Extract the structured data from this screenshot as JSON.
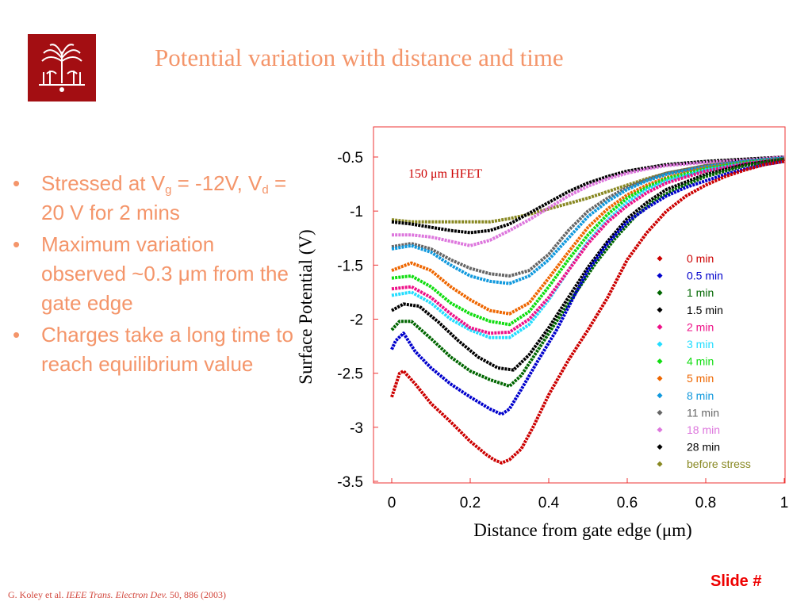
{
  "slide": {
    "title": "Potential variation with distance and time",
    "logo_icon": "university-seal-icon",
    "slide_number": "Slide #",
    "colors": {
      "accent": "#f4956a",
      "logo_bg": "#a30e12"
    }
  },
  "bullets": [
    {
      "parts": [
        "Stressed at V",
        "g",
        " = -12V, V",
        "d",
        " = 20 V for 2 mins"
      ]
    },
    {
      "text": "Maximum variation observed ~0.3 μm from the gate edge"
    },
    {
      "text": "Charges take a long time to reach equilibrium value"
    }
  ],
  "citation": {
    "authors": "G. Koley et al. ",
    "journal": "IEEE Trans. Electron Dev.",
    "details": " 50, 886 (2003)"
  },
  "chart_data": {
    "type": "scatter",
    "title": "",
    "annotation": "150 μm HFET",
    "xlabel": "Distance from gate edge (μm)",
    "ylabel": "Surface Potential (V)",
    "xlim": [
      0,
      1
    ],
    "ylim": [
      -3.5,
      -0.3
    ],
    "xticks": [
      0,
      0.2,
      0.4,
      0.6,
      0.8,
      1
    ],
    "xtick_labels": [
      "0",
      "0.2",
      "0.4",
      "0.6",
      "0.8",
      "1"
    ],
    "yticks": [
      -0.5,
      -1,
      -1.5,
      -2,
      -2.5,
      -3,
      -3.5
    ],
    "ytick_labels": [
      "-0.5",
      "-1",
      "-1.5",
      "-2",
      "-2.5",
      "-3",
      "-3.5"
    ],
    "grid": false,
    "legend_position": "right",
    "series": [
      {
        "name": "0 min",
        "color": "#cc0000",
        "x": [
          0,
          0.02,
          0.03,
          0.06,
          0.1,
          0.15,
          0.2,
          0.24,
          0.26,
          0.28,
          0.3,
          0.33,
          0.36,
          0.4,
          0.45,
          0.5,
          0.55,
          0.6,
          0.65,
          0.7,
          0.75,
          0.8,
          0.85,
          0.9,
          0.95,
          1
        ],
        "y": [
          -2.72,
          -2.5,
          -2.48,
          -2.6,
          -2.78,
          -2.95,
          -3.13,
          -3.25,
          -3.3,
          -3.33,
          -3.3,
          -3.2,
          -3.0,
          -2.7,
          -2.38,
          -2.1,
          -1.8,
          -1.45,
          -1.2,
          -1.0,
          -0.86,
          -0.76,
          -0.68,
          -0.62,
          -0.57,
          -0.54
        ]
      },
      {
        "name": "0.5 min",
        "color": "#0000cc",
        "x": [
          0,
          0.01,
          0.03,
          0.06,
          0.1,
          0.15,
          0.2,
          0.25,
          0.28,
          0.3,
          0.33,
          0.37,
          0.42,
          0.47,
          0.5,
          0.55,
          0.6,
          0.65,
          0.7,
          0.75,
          0.8,
          0.85,
          0.9,
          0.95,
          1
        ],
        "y": [
          -2.28,
          -2.2,
          -2.13,
          -2.3,
          -2.45,
          -2.6,
          -2.72,
          -2.83,
          -2.88,
          -2.83,
          -2.65,
          -2.4,
          -2.1,
          -1.75,
          -1.55,
          -1.3,
          -1.1,
          -0.97,
          -0.86,
          -0.78,
          -0.72,
          -0.66,
          -0.61,
          -0.57,
          -0.54
        ]
      },
      {
        "name": "1 min",
        "color": "#006600",
        "x": [
          0,
          0.02,
          0.05,
          0.1,
          0.15,
          0.2,
          0.25,
          0.3,
          0.33,
          0.37,
          0.42,
          0.47,
          0.52,
          0.57,
          0.62,
          0.67,
          0.72,
          0.8,
          0.9,
          1
        ],
        "y": [
          -2.1,
          -2.02,
          -2.02,
          -2.18,
          -2.35,
          -2.48,
          -2.56,
          -2.62,
          -2.52,
          -2.3,
          -2.02,
          -1.75,
          -1.48,
          -1.25,
          -1.05,
          -0.9,
          -0.8,
          -0.68,
          -0.58,
          -0.52
        ]
      },
      {
        "name": "1.5 min",
        "color": "#000000",
        "x": [
          0,
          0.03,
          0.07,
          0.12,
          0.17,
          0.22,
          0.27,
          0.31,
          0.35,
          0.4,
          0.45,
          0.5,
          0.55,
          0.6,
          0.65,
          0.7,
          0.8,
          0.9,
          1
        ],
        "y": [
          -1.92,
          -1.86,
          -1.88,
          -2.03,
          -2.2,
          -2.35,
          -2.45,
          -2.47,
          -2.33,
          -2.08,
          -1.8,
          -1.52,
          -1.28,
          -1.07,
          -0.92,
          -0.8,
          -0.66,
          -0.57,
          -0.52
        ]
      },
      {
        "name": "2 min",
        "color": "#ee1188",
        "x": [
          0,
          0.05,
          0.1,
          0.15,
          0.2,
          0.25,
          0.3,
          0.35,
          0.4,
          0.45,
          0.5,
          0.55,
          0.6,
          0.65,
          0.7,
          0.8,
          0.9,
          1
        ],
        "y": [
          -1.72,
          -1.7,
          -1.8,
          -1.95,
          -2.08,
          -2.13,
          -2.12,
          -2.0,
          -1.8,
          -1.55,
          -1.3,
          -1.1,
          -0.95,
          -0.83,
          -0.74,
          -0.63,
          -0.56,
          -0.52
        ]
      },
      {
        "name": "3 min",
        "color": "#22ddff",
        "x": [
          0,
          0.05,
          0.1,
          0.15,
          0.2,
          0.25,
          0.3,
          0.35,
          0.4,
          0.45,
          0.5,
          0.55,
          0.6,
          0.65,
          0.7,
          0.8,
          0.9,
          1
        ],
        "y": [
          -1.78,
          -1.75,
          -1.85,
          -2.0,
          -2.1,
          -2.17,
          -2.17,
          -2.05,
          -1.82,
          -1.55,
          -1.28,
          -1.08,
          -0.92,
          -0.8,
          -0.72,
          -0.62,
          -0.56,
          -0.52
        ]
      },
      {
        "name": "4 min",
        "color": "#11dd11",
        "x": [
          0,
          0.05,
          0.1,
          0.15,
          0.2,
          0.25,
          0.3,
          0.35,
          0.4,
          0.45,
          0.5,
          0.55,
          0.6,
          0.65,
          0.7,
          0.8,
          0.9,
          1
        ],
        "y": [
          -1.62,
          -1.6,
          -1.7,
          -1.85,
          -1.95,
          -2.02,
          -2.05,
          -1.93,
          -1.7,
          -1.45,
          -1.22,
          -1.03,
          -0.88,
          -0.78,
          -0.7,
          -0.61,
          -0.55,
          -0.52
        ]
      },
      {
        "name": "5 min",
        "color": "#ee6600",
        "x": [
          0,
          0.05,
          0.1,
          0.15,
          0.2,
          0.25,
          0.3,
          0.35,
          0.4,
          0.45,
          0.5,
          0.55,
          0.6,
          0.65,
          0.7,
          0.8,
          0.9,
          1
        ],
        "y": [
          -1.55,
          -1.48,
          -1.55,
          -1.7,
          -1.82,
          -1.92,
          -1.95,
          -1.85,
          -1.62,
          -1.38,
          -1.15,
          -0.98,
          -0.85,
          -0.76,
          -0.69,
          -0.6,
          -0.55,
          -0.52
        ]
      },
      {
        "name": "8 min",
        "color": "#1199dd",
        "x": [
          0,
          0.05,
          0.1,
          0.15,
          0.2,
          0.25,
          0.3,
          0.35,
          0.4,
          0.45,
          0.5,
          0.55,
          0.6,
          0.65,
          0.7,
          0.8,
          0.9,
          1
        ],
        "y": [
          -1.35,
          -1.32,
          -1.38,
          -1.5,
          -1.6,
          -1.65,
          -1.67,
          -1.6,
          -1.45,
          -1.25,
          -1.05,
          -0.91,
          -0.8,
          -0.72,
          -0.66,
          -0.59,
          -0.54,
          -0.51
        ]
      },
      {
        "name": "11 min",
        "color": "#666666",
        "x": [
          0,
          0.05,
          0.1,
          0.15,
          0.2,
          0.25,
          0.3,
          0.35,
          0.4,
          0.45,
          0.5,
          0.55,
          0.6,
          0.65,
          0.7,
          0.8,
          0.9,
          1
        ],
        "y": [
          -1.33,
          -1.3,
          -1.35,
          -1.45,
          -1.53,
          -1.58,
          -1.6,
          -1.55,
          -1.4,
          -1.18,
          -1.0,
          -0.88,
          -0.78,
          -0.71,
          -0.65,
          -0.58,
          -0.54,
          -0.51
        ]
      },
      {
        "name": "18 min",
        "color": "#dd77dd",
        "x": [
          0,
          0.05,
          0.1,
          0.15,
          0.2,
          0.25,
          0.3,
          0.35,
          0.4,
          0.45,
          0.5,
          0.55,
          0.6,
          0.65,
          0.7,
          0.8,
          0.9,
          1
        ],
        "y": [
          -1.22,
          -1.22,
          -1.24,
          -1.28,
          -1.32,
          -1.27,
          -1.18,
          -1.08,
          -0.97,
          -0.86,
          -0.77,
          -0.7,
          -0.65,
          -0.61,
          -0.58,
          -0.55,
          -0.53,
          -0.5
        ]
      },
      {
        "name": "28 min",
        "color": "#000000",
        "x": [
          0,
          0.05,
          0.1,
          0.15,
          0.2,
          0.25,
          0.3,
          0.35,
          0.4,
          0.45,
          0.5,
          0.55,
          0.6,
          0.65,
          0.7,
          0.8,
          0.9,
          1
        ],
        "y": [
          -1.1,
          -1.12,
          -1.15,
          -1.18,
          -1.2,
          -1.18,
          -1.12,
          -1.02,
          -0.92,
          -0.82,
          -0.74,
          -0.68,
          -0.63,
          -0.6,
          -0.57,
          -0.54,
          -0.52,
          -0.5
        ]
      },
      {
        "name": "before stress",
        "color": "#888822",
        "x": [
          0,
          0.05,
          0.1,
          0.15,
          0.2,
          0.25,
          0.3,
          0.35,
          0.4,
          0.45,
          0.5,
          0.55,
          0.6,
          0.65,
          0.7,
          0.8,
          0.9,
          1
        ],
        "y": [
          -1.08,
          -1.1,
          -1.1,
          -1.1,
          -1.1,
          -1.1,
          -1.07,
          -1.03,
          -0.98,
          -0.93,
          -0.88,
          -0.82,
          -0.76,
          -0.7,
          -0.65,
          -0.58,
          -0.54,
          -0.52
        ]
      }
    ]
  }
}
